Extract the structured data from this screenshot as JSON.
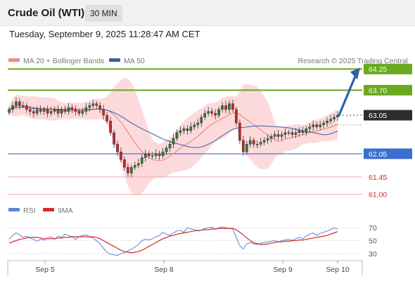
{
  "header": {
    "title": "Crude Oil (WTI)",
    "timeframe": "30 MIN"
  },
  "timestamp": "Tuesday, September 9, 2025 11:28:47 AM CET",
  "legend": {
    "ma20": "MA 20 + Bollinger Bands",
    "ma50": "MA 50",
    "rsi": "RSI",
    "rsi_ma": "9MA"
  },
  "credit": "Research © 2025 Trading Central",
  "colors": {
    "resistance": "#6aa81e",
    "support": "#3a6fd0",
    "support_light": "#f3a7a3",
    "ma20": "#ee8c86",
    "ma50": "#3a5fa8",
    "bollinger": "#fbd4d6",
    "candle_up": "#2f7d32",
    "candle_down": "#c62828",
    "last_price": "#2d2d2d",
    "arrow": "#2e62a8",
    "rsi": "#5b84d8",
    "rsi_ma": "#d62828"
  },
  "chart_data": [
    {
      "type": "candlestick",
      "x_ticks": [
        "Sep 5",
        "Sep 8",
        "Sep 9",
        "Sep 10"
      ],
      "ylim": [
        60.9,
        64.4
      ],
      "levels": [
        {
          "value": 64.25,
          "label": "64.25",
          "kind": "resistance"
        },
        {
          "value": 63.7,
          "label": "63.70",
          "kind": "resistance"
        },
        {
          "value": 63.05,
          "label": "63.05",
          "kind": "last"
        },
        {
          "value": 62.05,
          "label": "62.05",
          "kind": "support"
        },
        {
          "value": 61.45,
          "label": "61.45",
          "kind": "minor-support"
        },
        {
          "value": 61.0,
          "label": "61.00",
          "kind": "minor-support"
        }
      ],
      "close": [
        63.2,
        63.3,
        63.4,
        63.3,
        63.3,
        63.2,
        63.15,
        63.1,
        63.2,
        63.15,
        63.2,
        63.1,
        63.15,
        63.2,
        63.1,
        63.2,
        63.15,
        63.25,
        63.2,
        63.15,
        63.1,
        63.15,
        63.25,
        63.3,
        63.35,
        63.3,
        63.2,
        63.05,
        62.9,
        62.6,
        62.3,
        62.1,
        61.9,
        61.7,
        61.55,
        61.7,
        61.75,
        61.8,
        61.95,
        62.05,
        62.0,
        62.0,
        62.05,
        62.0,
        62.1,
        62.2,
        62.3,
        62.45,
        62.6,
        62.65,
        62.7,
        62.65,
        62.75,
        62.8,
        62.85,
        63.0,
        63.1,
        63.15,
        63.1,
        63.05,
        63.2,
        63.3,
        63.2,
        63.35,
        63.2,
        62.85,
        62.4,
        62.1,
        62.3,
        62.4,
        62.3,
        62.3,
        62.35,
        62.4,
        62.45,
        62.5,
        62.55,
        62.5,
        62.55,
        62.6,
        62.6,
        62.55,
        62.6,
        62.65,
        62.6,
        62.7,
        62.75,
        62.8,
        62.75,
        62.8,
        62.85,
        62.9,
        62.95,
        63.0,
        63.05
      ],
      "ma20_last": 62.9,
      "ma50_last": 62.8,
      "projection": {
        "from": 63.05,
        "to": 64.25
      }
    },
    {
      "type": "line",
      "title": "RSI",
      "ylim": [
        20,
        80
      ],
      "y_ticks": [
        70,
        50,
        30
      ],
      "series": [
        {
          "name": "RSI",
          "values": [
            52,
            58,
            62,
            59,
            55,
            57,
            54,
            52,
            49,
            52,
            51,
            54,
            56,
            52,
            57,
            55,
            60,
            58,
            56,
            52,
            56,
            58,
            59,
            56,
            54,
            50,
            45,
            38,
            32,
            29,
            28,
            27,
            30,
            31,
            34,
            37,
            40,
            44,
            50,
            52,
            51,
            53,
            56,
            58,
            63,
            60,
            58,
            62,
            65,
            66,
            63,
            70,
            68,
            67,
            65,
            66,
            69,
            70,
            71,
            68,
            70,
            71,
            70,
            69,
            68,
            55,
            42,
            37,
            45,
            47,
            45,
            44,
            46,
            47,
            48,
            49,
            50,
            48,
            50,
            51,
            52,
            50,
            53,
            55,
            53,
            57,
            60,
            62,
            58,
            61,
            63,
            65,
            67,
            70,
            68
          ]
        },
        {
          "name": "9MA",
          "values": [
            46,
            48,
            50,
            52,
            53,
            54,
            55,
            55,
            55,
            54,
            53,
            53,
            53,
            53,
            54,
            54,
            55,
            55,
            56,
            56,
            56,
            56,
            56,
            56,
            56,
            55,
            53,
            50,
            47,
            44,
            41,
            38,
            35,
            33,
            32,
            31,
            32,
            33,
            35,
            38,
            41,
            44,
            47,
            50,
            53,
            55,
            57,
            58,
            60,
            61,
            62,
            63,
            64,
            65,
            66,
            66,
            67,
            67,
            68,
            68,
            69,
            69,
            69,
            69,
            69,
            67,
            63,
            59,
            54,
            50,
            47,
            45,
            44,
            44,
            45,
            46,
            47,
            48,
            48,
            49,
            49,
            50,
            50,
            51,
            51,
            52,
            53,
            54,
            55,
            56,
            57,
            58,
            60,
            62,
            64
          ]
        }
      ]
    }
  ]
}
